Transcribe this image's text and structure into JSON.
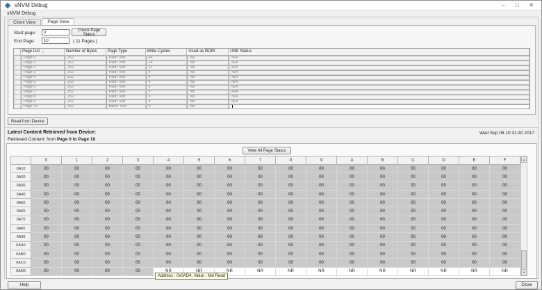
{
  "window": {
    "title": "sNVM Debug",
    "controls": {
      "minimize": "–",
      "maximize": "□",
      "close": "✕"
    }
  },
  "group": {
    "title": "sNVM Debug"
  },
  "tabs": [
    {
      "label": "Client View"
    },
    {
      "label": "Page View"
    }
  ],
  "form": {
    "start_page_label": "Start page:",
    "start_page_value": "0",
    "check_button": "Check Page Status",
    "end_page_label": "End Page:",
    "end_page_value": "10",
    "pages_note": "( 11 Pages )"
  },
  "page_table": {
    "columns": [
      "Page List",
      "Number of Bytes",
      "Page Type",
      "Write Cycles",
      "Used as ROM",
      "USK Status"
    ],
    "sort_indicator": "▽",
    "rows": [
      {
        "page": "Page 0",
        "bytes": "252",
        "type": "Plain Text",
        "cycles": "44",
        "rom": "No",
        "usk": "N/A",
        "editing": false
      },
      {
        "page": "Page 1",
        "bytes": "252",
        "type": "Plain Text",
        "cycles": "14",
        "rom": "No",
        "usk": "N/A",
        "editing": false
      },
      {
        "page": "Page 2",
        "bytes": "252",
        "type": "Plain Text",
        "cycles": "11",
        "rom": "No",
        "usk": "N/A",
        "editing": false
      },
      {
        "page": "Page 3",
        "bytes": "252",
        "type": "Plain Text",
        "cycles": "4",
        "rom": "No",
        "usk": "N/A",
        "editing": false
      },
      {
        "page": "Page 4",
        "bytes": "252",
        "type": "Plain Text",
        "cycles": "4",
        "rom": "No",
        "usk": "N/A",
        "editing": false
      },
      {
        "page": "Page 5",
        "bytes": "252",
        "type": "Plain Text",
        "cycles": "4",
        "rom": "No",
        "usk": "N/A",
        "editing": false
      },
      {
        "page": "Page 6",
        "bytes": "252",
        "type": "Plain Text",
        "cycles": "3",
        "rom": "No",
        "usk": "N/A",
        "editing": false
      },
      {
        "page": "Page 7",
        "bytes": "252",
        "type": "Plain Text",
        "cycles": "3",
        "rom": "No",
        "usk": "N/A",
        "editing": false
      },
      {
        "page": "Page 8",
        "bytes": "252",
        "type": "Plain Text",
        "cycles": "3",
        "rom": "No",
        "usk": "N/A",
        "editing": false
      },
      {
        "page": "Page 9",
        "bytes": "252",
        "type": "Plain Text",
        "cycles": "3",
        "rom": "No",
        "usk": "N/A",
        "editing": false
      },
      {
        "page": "Page 10",
        "bytes": "252",
        "type": "Blank Text",
        "cycles": "0",
        "rom": "No",
        "usk": "",
        "editing": true
      }
    ]
  },
  "actions": {
    "read_button": "Read from Device",
    "view_all_button": "View All Page Status",
    "help_button": "Help",
    "close_button": "Close"
  },
  "status": {
    "latest_label": "Latest Content Retrieved from Device:",
    "timestamp": "Wed Sep 06 10:31:40 2017",
    "retrieved_prefix": "Retrieved Content:  from ",
    "retrieved_range": "Page 0 to Page 10",
    "retrieved_suffix": "."
  },
  "hex_table": {
    "col_headers": [
      "0",
      "1",
      "2",
      "3",
      "4",
      "5",
      "6",
      "7",
      "8",
      "9",
      "A",
      "B",
      "C",
      "D",
      "E",
      "F"
    ],
    "rows": [
      {
        "addr": "0A10",
        "cells": [
          "00",
          "00",
          "00",
          "00",
          "00",
          "00",
          "00",
          "00",
          "00",
          "00",
          "00",
          "00",
          "00",
          "00",
          "00",
          "00"
        ]
      },
      {
        "addr": "0A20",
        "cells": [
          "00",
          "00",
          "00",
          "00",
          "00",
          "00",
          "00",
          "00",
          "00",
          "00",
          "00",
          "00",
          "00",
          "00",
          "00",
          "00"
        ]
      },
      {
        "addr": "0A30",
        "cells": [
          "00",
          "00",
          "00",
          "00",
          "00",
          "00",
          "00",
          "00",
          "00",
          "00",
          "00",
          "00",
          "00",
          "00",
          "00",
          "00"
        ]
      },
      {
        "addr": "0A40",
        "cells": [
          "00",
          "00",
          "00",
          "00",
          "00",
          "00",
          "00",
          "00",
          "00",
          "00",
          "00",
          "00",
          "00",
          "00",
          "00",
          "00"
        ]
      },
      {
        "addr": "0A50",
        "cells": [
          "00",
          "00",
          "00",
          "00",
          "00",
          "00",
          "00",
          "00",
          "00",
          "00",
          "00",
          "00",
          "00",
          "00",
          "00",
          "00"
        ]
      },
      {
        "addr": "0A60",
        "cells": [
          "00",
          "00",
          "00",
          "00",
          "00",
          "00",
          "00",
          "00",
          "00",
          "00",
          "00",
          "00",
          "00",
          "00",
          "00",
          "00"
        ]
      },
      {
        "addr": "0A70",
        "cells": [
          "00",
          "00",
          "00",
          "00",
          "00",
          "00",
          "00",
          "00",
          "00",
          "00",
          "00",
          "00",
          "00",
          "00",
          "00",
          "00"
        ]
      },
      {
        "addr": "0A80",
        "cells": [
          "00",
          "00",
          "00",
          "00",
          "00",
          "00",
          "00",
          "00",
          "00",
          "00",
          "00",
          "00",
          "00",
          "00",
          "00",
          "00"
        ]
      },
      {
        "addr": "0A90",
        "cells": [
          "00",
          "00",
          "00",
          "00",
          "00",
          "00",
          "00",
          "00",
          "00",
          "00",
          "00",
          "00",
          "00",
          "00",
          "00",
          "00"
        ]
      },
      {
        "addr": "0AA0",
        "cells": [
          "00",
          "00",
          "00",
          "00",
          "00",
          "00",
          "00",
          "00",
          "00",
          "00",
          "00",
          "00",
          "00",
          "00",
          "00",
          "00"
        ]
      },
      {
        "addr": "0AB0",
        "cells": [
          "00",
          "00",
          "00",
          "00",
          "00",
          "00",
          "00",
          "00",
          "00",
          "00",
          "00",
          "00",
          "00",
          "00",
          "00",
          "00"
        ]
      },
      {
        "addr": "0AC0",
        "cells": [
          "00",
          "00",
          "00",
          "00",
          "00",
          "00",
          "00",
          "00",
          "00",
          "00",
          "00",
          "00",
          "00",
          "00",
          "00",
          "00"
        ]
      },
      {
        "addr": "0AD0",
        "cells": [
          "00",
          "00",
          "00",
          "00",
          "NR",
          "NR",
          "NR",
          "NR",
          "NR",
          "NR",
          "NR",
          "NR",
          "NR",
          "NR",
          "NR",
          "NR"
        ]
      }
    ]
  },
  "tooltip": {
    "text": "Address : 0x0AD4, Value : Not Read"
  },
  "scrollbar": {
    "up": "▲",
    "down": "▼"
  },
  "colors": {
    "dialog_bg": "#f0f0f0",
    "titlebar_bg": "#ffffff",
    "hex_cell_bg": "#c9c9c9",
    "nr_cell_bg": "#ffffff",
    "tooltip_bg": "#ffffe1",
    "app_icon": "#2e6fb0"
  }
}
